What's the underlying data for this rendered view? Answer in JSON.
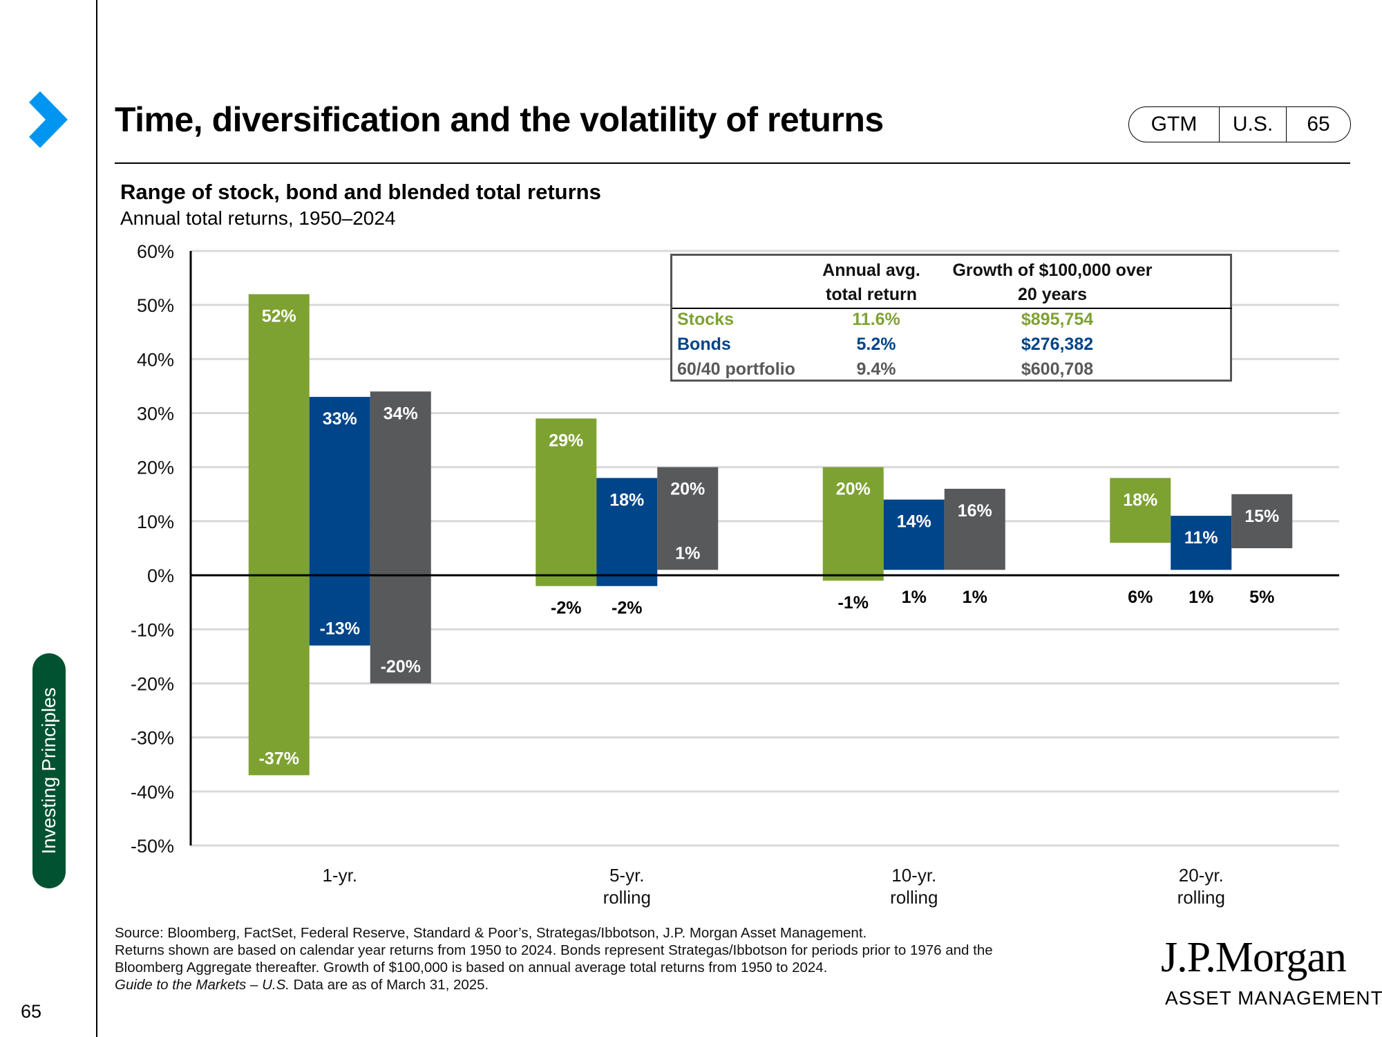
{
  "header": {
    "title": "Time, diversification and the volatility of returns",
    "tags": [
      "GTM",
      "U.S.",
      "65"
    ]
  },
  "sidebar": {
    "section_label": "Investing Principles",
    "page_number": "65",
    "nav_icon": "chevron-right-icon"
  },
  "chart_title": "Range of stock, bond and blended total returns",
  "chart_subtitle": "Annual total returns, 1950–2024",
  "colors": {
    "stocks": "#7ea232",
    "bonds": "#004489",
    "blend": "#58595b"
  },
  "chart_data": {
    "type": "bar",
    "subtype": "floating-range",
    "title": "Range of stock, bond and blended total returns",
    "subtitle": "Annual total returns, 1950–2024",
    "xlabel": "",
    "ylabel": "",
    "ylim": [
      -50,
      60
    ],
    "yticks": [
      60,
      50,
      40,
      30,
      20,
      10,
      0,
      -10,
      -20,
      -30,
      -40,
      -50
    ],
    "ytick_labels": [
      "60%",
      "50%",
      "40%",
      "30%",
      "20%",
      "10%",
      "0%",
      "-10%",
      "-20%",
      "-30%",
      "-40%",
      "-50%"
    ],
    "grid": true,
    "categories": [
      [
        "1-yr."
      ],
      [
        "5-yr.",
        "rolling"
      ],
      [
        "10-yr.",
        "rolling"
      ],
      [
        "20-yr.",
        "rolling"
      ]
    ],
    "series": [
      {
        "name": "Stocks",
        "color": "#7ea232",
        "max": [
          52,
          29,
          20,
          18
        ],
        "min": [
          -37,
          -2,
          -1,
          6
        ],
        "max_labels": [
          "52%",
          "29%",
          "20%",
          "18%"
        ],
        "min_labels": [
          "-37%",
          "-2%",
          "-1%",
          "6%"
        ]
      },
      {
        "name": "Bonds",
        "color": "#004489",
        "max": [
          33,
          18,
          14,
          11
        ],
        "min": [
          -13,
          -2,
          1,
          1
        ],
        "max_labels": [
          "33%",
          "18%",
          "14%",
          "11%"
        ],
        "min_labels": [
          "-13%",
          "-2%",
          "1%",
          "1%"
        ]
      },
      {
        "name": "60/40 portfolio",
        "color": "#58595b",
        "max": [
          34,
          20,
          16,
          15
        ],
        "min": [
          -20,
          1,
          1,
          5
        ],
        "max_labels": [
          "34%",
          "20%",
          "16%",
          "15%"
        ],
        "min_labels": [
          "-20%",
          "1%",
          "1%",
          "5%"
        ]
      }
    ]
  },
  "inset_table": {
    "headers": [
      [
        "Annual avg.",
        "total return"
      ],
      [
        "Growth of $100,000 over",
        "20 years"
      ]
    ],
    "rows": [
      {
        "label": "Stocks",
        "return": "11.6%",
        "growth": "$895,754",
        "color": "#7ea232"
      },
      {
        "label": "Bonds",
        "return": "5.2%",
        "growth": "$276,382",
        "color": "#004489"
      },
      {
        "label": "60/40 portfolio",
        "return": "9.4%",
        "growth": "$600,708",
        "color": "#58595b"
      }
    ]
  },
  "footer": {
    "source_lines": [
      "Source: Bloomberg, FactSet, Federal Reserve, Standard & Poor’s, Strategas/Ibbotson, J.P. Morgan Asset Management.",
      "Returns shown are based on calendar year returns from 1950 to 2024. Bonds represent Strategas/Ibbotson for periods prior to 1976 and the",
      "Bloomberg Aggregate thereafter. Growth of $100,000 is based on annual average total returns from 1950 to 2024."
    ],
    "guide_italic": "Guide to the Markets – U.S.",
    "data_as_of": " Data are as of March 31, 2025."
  },
  "logo": {
    "line1": "J.P.Morgan",
    "line2": "ASSET MANAGEMENT"
  }
}
